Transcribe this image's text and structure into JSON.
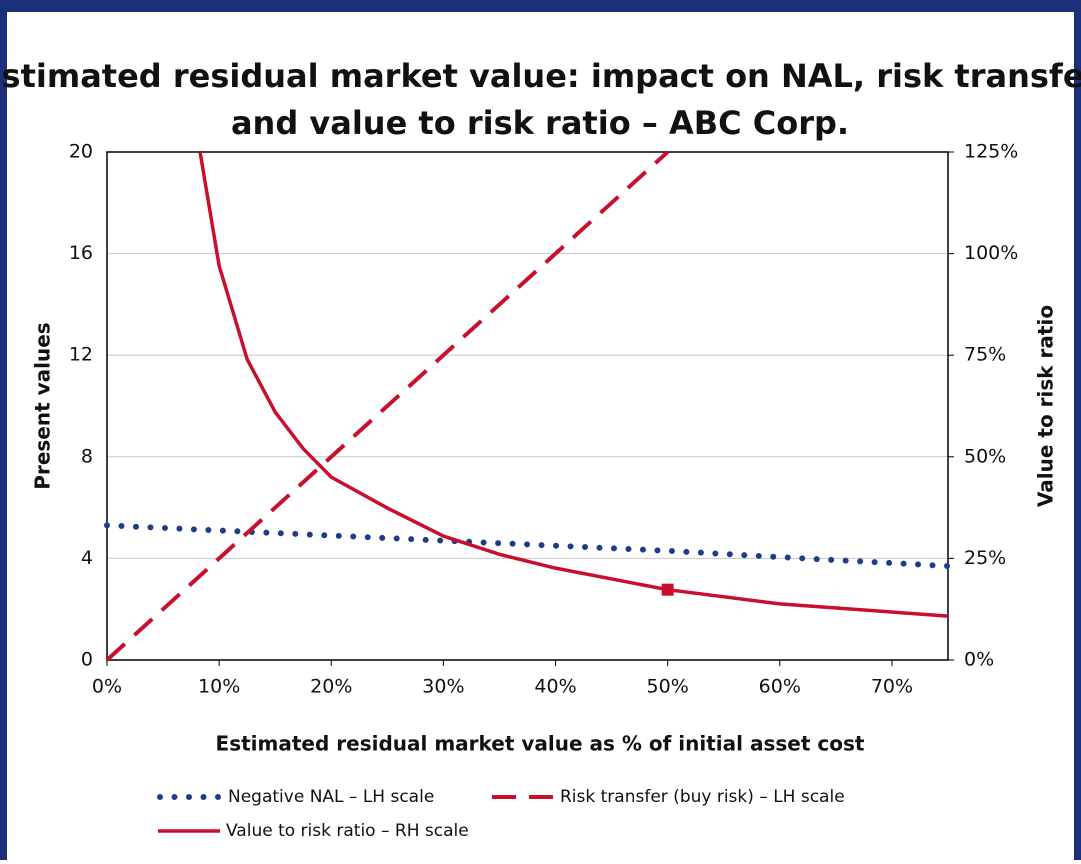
{
  "chart_data": {
    "type": "line",
    "title": [
      "Estimated residual market value: impact on NAL, risk transfer",
      "and value to risk ratio – ABC Corp."
    ],
    "x_label": "Estimated residual market value as % of initial asset cost",
    "y_label": "Present values",
    "y2_label": "Value to risk ratio",
    "xlim": [
      0,
      75
    ],
    "xticks": [
      {
        "value": 0,
        "label": "0%"
      },
      {
        "value": 10,
        "label": "10%"
      },
      {
        "value": 20,
        "label": "20%"
      },
      {
        "value": 30,
        "label": "30%"
      },
      {
        "value": 40,
        "label": "40%"
      },
      {
        "value": 50,
        "label": "50%"
      },
      {
        "value": 60,
        "label": "60%"
      },
      {
        "value": 70,
        "label": "70%"
      }
    ],
    "ylim": [
      0,
      20
    ],
    "yticks": [
      0,
      4,
      8,
      12,
      16,
      20
    ],
    "y2lim": [
      0,
      125
    ],
    "y2ticks": [
      {
        "value": 0,
        "label": "0%"
      },
      {
        "value": 25,
        "label": "25%"
      },
      {
        "value": 50,
        "label": "50%"
      },
      {
        "value": 75,
        "label": "75%"
      },
      {
        "value": 100,
        "label": "100%"
      },
      {
        "value": 125,
        "label": "125%"
      }
    ],
    "grid": true,
    "series": [
      {
        "name": "Negative NAL – LH scale",
        "color": "#1f3c88",
        "style": "dotted",
        "axis": "y",
        "x": [
          0,
          10,
          20,
          30,
          40,
          50,
          60,
          75
        ],
        "values": [
          5.3,
          5.1,
          4.9,
          4.7,
          4.5,
          4.3,
          4.05,
          3.7
        ]
      },
      {
        "name": "Risk transfer (buy risk) – LH scale",
        "color": "#c8102e",
        "style": "dashed",
        "axis": "y",
        "x": [
          0,
          50
        ],
        "values": [
          0,
          20
        ]
      },
      {
        "name": "Value to risk ratio – RH scale",
        "color": "#c8102e",
        "style": "solid",
        "axis": "y2",
        "x": [
          8.3,
          10,
          12.5,
          15,
          17.5,
          20,
          25,
          30,
          35,
          40,
          50,
          60,
          75
        ],
        "values": [
          125,
          97,
          74,
          61,
          52,
          45,
          37.4,
          30.5,
          26,
          22.6,
          17.3,
          13.8,
          10.8
        ]
      }
    ],
    "highlight_point": {
      "x": 50,
      "value": 17.3,
      "axis": "y2",
      "color": "#c8102e"
    }
  }
}
